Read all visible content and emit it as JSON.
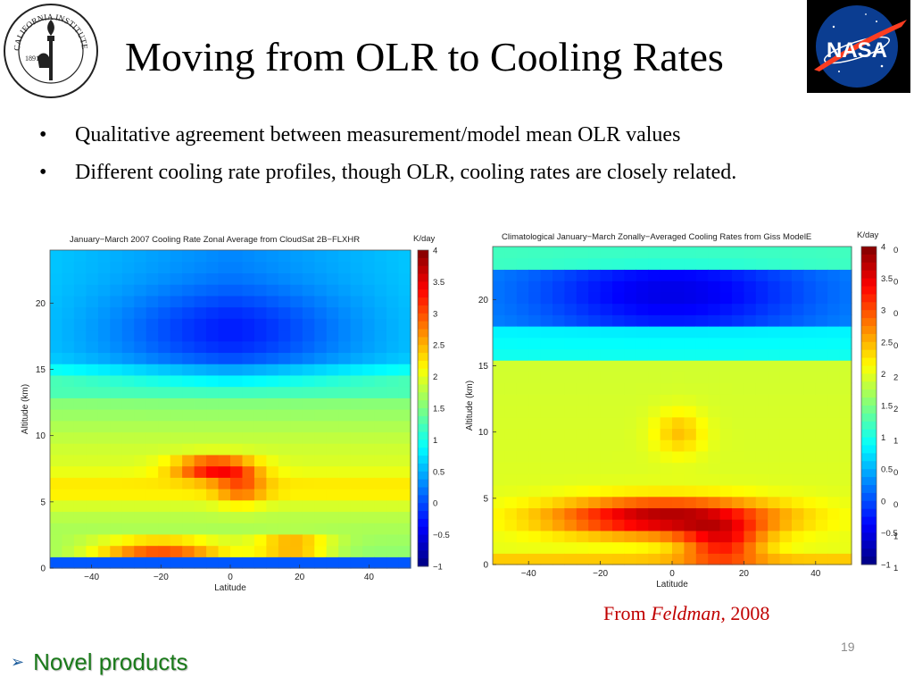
{
  "slide": {
    "title": "Moving from OLR to Cooling Rates",
    "bullets": [
      "Qualitative agreement between measurement/model mean OLR values",
      "Different cooling rate profiles, though OLR, cooling rates are closely related."
    ],
    "citation_prefix": "From ",
    "citation_author": "Feldman,",
    "citation_year": " 2008",
    "slide_number": "19",
    "footer": "Novel products",
    "bullet_glyph": "•",
    "footer_glyph": "➢"
  },
  "logos": {
    "caltech_text": "CALIFORNIA INSTITUTE OF TECHNOLOGY",
    "caltech_year": "1891",
    "nasa_text": "NASA"
  },
  "colors": {
    "title": "#000000",
    "citation": "#c00000",
    "footer": "#1a7a1a",
    "nasa_blue": "#0b3d91",
    "nasa_red": "#fc3d21"
  },
  "chart_data": [
    {
      "type": "heatmap",
      "title": "January−March 2007 Cooling Rate Zonal Average from CloudSat 2B−FLXHR",
      "xlabel": "Latitude",
      "ylabel": "Altitude (km)",
      "colorbar_label": "K/day",
      "colormap": "jet",
      "xlim": [
        -52,
        52
      ],
      "ylim": [
        0,
        24
      ],
      "clim": [
        -1,
        4
      ],
      "xticks": [
        -40,
        -20,
        0,
        20,
        40
      ],
      "yticks": [
        0,
        5,
        10,
        15,
        20
      ],
      "cbar_ticks": [
        4,
        3.5,
        3,
        2.5,
        2,
        1.5,
        1,
        0.5,
        0,
        -0.5,
        -1
      ],
      "features": [
        {
          "kind": "cooling_minimum",
          "lat_range": [
            -40,
            40
          ],
          "alt_center_km": 18,
          "value": -0.2
        },
        {
          "kind": "surface_band",
          "lat_range": [
            -50,
            50
          ],
          "alt_km": 0.3,
          "value": 0.0
        },
        {
          "kind": "heating_layer",
          "lat_range": [
            -45,
            10
          ],
          "alt_km": 1.5,
          "value": 3.3
        },
        {
          "kind": "heating_layer",
          "lat_range": [
            10,
            30
          ],
          "alt_km": 1.8,
          "value": 3.0
        },
        {
          "kind": "heating_layer",
          "lat_range": [
            -15,
            5
          ],
          "alt_km": 7.5,
          "value": 3.1
        }
      ]
    },
    {
      "type": "heatmap",
      "title": "Climatological January−March Zonally−Averaged Cooling Rates from Giss ModelE",
      "xlabel": "Latitude",
      "ylabel": "Altitude (km)",
      "colorbar_label": "K/day",
      "colormap": "jet",
      "xlim": [
        -50,
        50
      ],
      "ylim": [
        0,
        24
      ],
      "clim": [
        -1,
        4
      ],
      "xticks": [
        -40,
        -20,
        0,
        20,
        40
      ],
      "yticks": [
        0,
        5,
        10,
        15,
        20
      ],
      "cbar_ticks": [
        4,
        3.5,
        3,
        2.5,
        2,
        1.5,
        1,
        0.5,
        0,
        -0.5,
        -1
      ],
      "cbar_right_labels": [
        "0",
        "0",
        "0",
        "0",
        "2",
        "2",
        "1",
        "0",
        "0",
        "1",
        "1"
      ],
      "features": [
        {
          "kind": "cooling_minimum",
          "lat_range": [
            -45,
            45
          ],
          "alt_center_km": 20.5,
          "value": -0.2
        },
        {
          "kind": "heating_layer",
          "lat_range": [
            -40,
            30
          ],
          "alt_km": 3.5,
          "value": 3.7
        },
        {
          "kind": "heating_lobe",
          "lat_range": [
            5,
            25
          ],
          "alt_km": 1.5,
          "value": 3.2
        }
      ]
    }
  ]
}
